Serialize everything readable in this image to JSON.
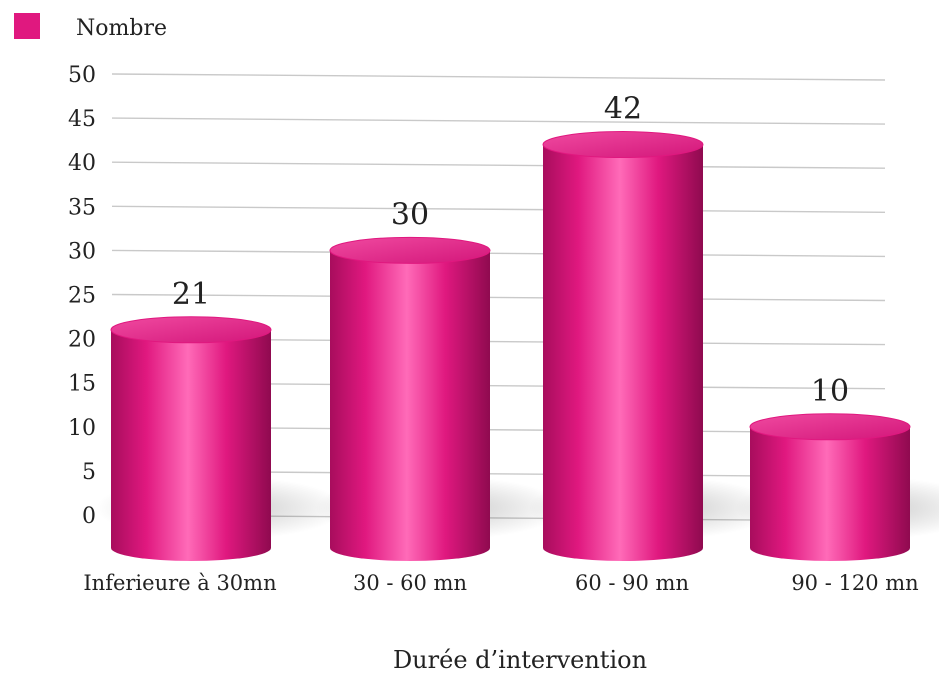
{
  "chart_data": {
    "type": "bar",
    "categories": [
      "Inferieure à 30mn",
      "30 - 60 mn",
      "60 - 90 mn",
      "90 - 120 mn"
    ],
    "series": [
      {
        "name": "Nombre",
        "values": [
          21,
          30,
          42,
          10
        ],
        "color": "#e0187f"
      }
    ],
    "data_labels": [
      "21",
      "30",
      "42",
      "10"
    ],
    "xlabel": "Durée d’intervention",
    "ylabel": "",
    "ylim": [
      0,
      50
    ],
    "yticks": [
      0,
      5,
      10,
      15,
      20,
      25,
      30,
      35,
      40,
      45,
      50
    ],
    "ytick_labels": [
      "0",
      "5",
      "10",
      "15",
      "20",
      "25",
      "30",
      "35",
      "40",
      "45",
      "50"
    ],
    "legend": {
      "position": "top-left",
      "label": "Nombre"
    },
    "grid": true,
    "style": "3d-cylinder"
  }
}
